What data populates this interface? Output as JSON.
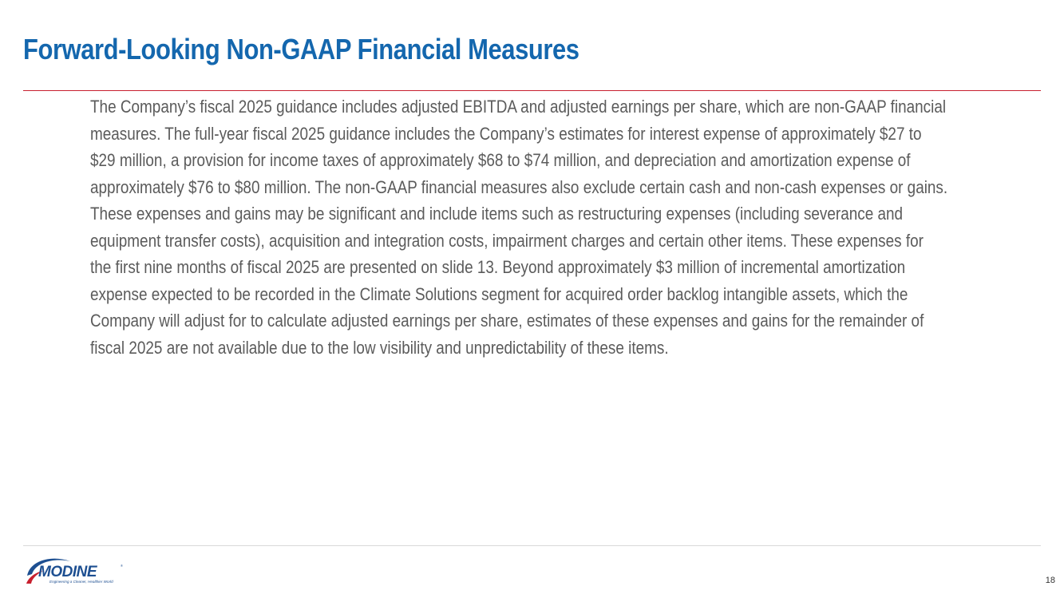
{
  "slide": {
    "title": "Forward-Looking Non-GAAP Financial Measures",
    "body": "The Company’s fiscal 2025 guidance includes adjusted EBITDA and adjusted earnings per share, which are non-GAAP financial measures. The full-year fiscal 2025 guidance includes the Company’s estimates for interest expense of approximately $27 to $29 million, a provision for income taxes of approximately $68 to $74 million, and depreciation and amortization expense of approximately $76 to $80 million. The non-GAAP financial measures also exclude certain cash and non-cash expenses or gains. These expenses and gains may be significant and include items such as restructuring expenses (including severance and equipment transfer costs), acquisition and integration costs, impairment charges and certain other items. These expenses for the first nine months of fiscal 2025 are presented on slide 13. Beyond approximately $3 million of incremental amortization expense expected to be recorded in the Climate Solutions segment for acquired order backlog intangible assets, which the Company will adjust for to calculate adjusted earnings per share, estimates of these expenses and gains for the remainder of fiscal 2025 are not available due to the low visibility and unpredictability of these items.",
    "page_number": "18"
  },
  "logo": {
    "name": "MODINE",
    "tagline": "Engineering a Cleaner, Healthier World",
    "icon": "modine-swoosh-logo"
  },
  "colors": {
    "title": "#1467ae",
    "title_rule": "#c8202f",
    "body_text": "#5b5b5b",
    "footer_rule": "#d9d9d9",
    "logo_blue": "#1d4f91",
    "logo_red": "#c8202f"
  }
}
